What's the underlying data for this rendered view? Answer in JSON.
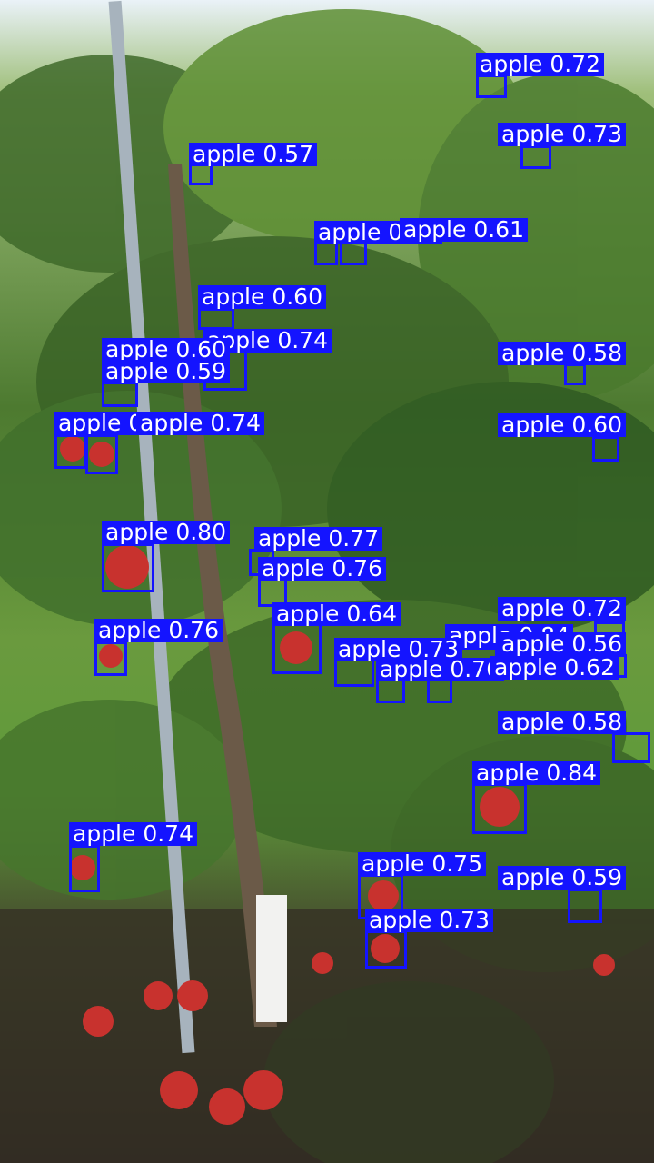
{
  "image": {
    "description_colors": {
      "sky": "#eaf2f8",
      "foliage_dark": "#2f4a22",
      "foliage_light": "#7fae46",
      "grass": "#5f9a3a",
      "soil": "#3b3327",
      "apple_red": "#c8322e",
      "box_blue": "#1414ff"
    }
  },
  "detections": [
    {
      "label": "apple 0.72"
    },
    {
      "label": "apple 0.73"
    },
    {
      "label": "apple 0.57"
    },
    {
      "label": "apple 0.62"
    },
    {
      "label": "apple 0.61"
    },
    {
      "label": "apple 0.60"
    },
    {
      "label": "apple 0.74"
    },
    {
      "label": "apple 0.60"
    },
    {
      "label": "apple 0.59"
    },
    {
      "label": "apple 0.58"
    },
    {
      "label": "apple 0.76"
    },
    {
      "label": "apple 0.74"
    },
    {
      "label": "apple 0.60"
    },
    {
      "label": "apple 0.80"
    },
    {
      "label": "apple 0.77"
    },
    {
      "label": "apple 0.76"
    },
    {
      "label": "apple 0.64"
    },
    {
      "label": "apple 0.76"
    },
    {
      "label": "apple 0.72"
    },
    {
      "label": "apple 0.84"
    },
    {
      "label": "apple 0.56"
    },
    {
      "label": "apple 0.73"
    },
    {
      "label": "apple 0.76"
    },
    {
      "label": "apple 0.62"
    },
    {
      "label": "apple 0.58"
    },
    {
      "label": "apple 0.84"
    },
    {
      "label": "apple 0.74"
    },
    {
      "label": "apple 0.75"
    },
    {
      "label": "apple 0.59"
    },
    {
      "label": "apple 0.73"
    }
  ]
}
